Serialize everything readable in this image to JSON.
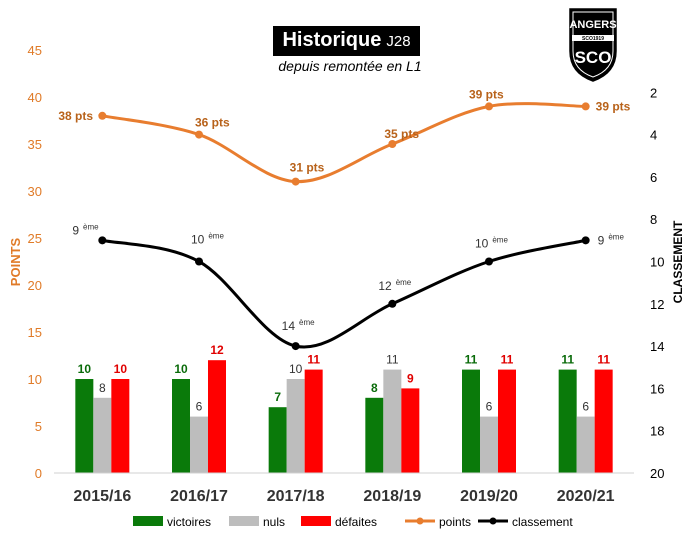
{
  "title": {
    "main": "Historique",
    "matchday": "J28"
  },
  "subtitle": "depuis remontée en L1",
  "logo": {
    "text": "ANGERS",
    "monogram": "SCO",
    "ribbon": "SCO1919"
  },
  "chart_data": {
    "type": "bar",
    "categories": [
      "2015/16",
      "2016/17",
      "2017/18",
      "2018/19",
      "2019/20",
      "2020/21"
    ],
    "series": [
      {
        "name": "victoires",
        "kind": "bar",
        "axis": "left",
        "color": "#0a7a0a",
        "label_color": "#0a6b0a",
        "values": [
          10,
          10,
          7,
          8,
          11,
          11
        ],
        "labels": [
          "10",
          "10",
          "7",
          "8",
          "11",
          "11"
        ]
      },
      {
        "name": "nuls",
        "kind": "bar",
        "axis": "left",
        "color": "#bdbdbd",
        "label_color": "#333333",
        "values": [
          8,
          6,
          10,
          11,
          6,
          6
        ],
        "labels": [
          "8",
          "6",
          "10",
          "11",
          "6",
          "6"
        ]
      },
      {
        "name": "défaites",
        "kind": "bar",
        "axis": "left",
        "color": "#ff0000",
        "label_color": "#e00000",
        "values": [
          10,
          12,
          11,
          9,
          11,
          11
        ],
        "labels": [
          "10",
          "12",
          "11",
          "9",
          "11",
          "11"
        ]
      },
      {
        "name": "points",
        "kind": "line",
        "axis": "left",
        "color": "#e87d2f",
        "label_color": "#b8621a",
        "values": [
          38,
          36,
          31,
          35,
          39,
          39
        ],
        "labels": [
          "38 pts",
          "36 pts",
          "31 pts",
          "35 pts",
          "39 pts",
          "39 pts"
        ]
      },
      {
        "name": "classement",
        "kind": "line",
        "axis": "right",
        "color": "#000000",
        "label_color": "#333333",
        "values": [
          9,
          10,
          14,
          12,
          10,
          9
        ],
        "labels": [
          "9",
          "10",
          "14",
          "12",
          "10",
          "9"
        ],
        "label_suffix": "ème"
      }
    ],
    "ylabel_left": "POINTS",
    "ylabel_right": "CLASSEMENT",
    "ylim_left": [
      0,
      45
    ],
    "yticks_left": [
      0,
      5,
      10,
      15,
      20,
      25,
      30,
      35,
      40,
      45
    ],
    "ylim_right": [
      20,
      0
    ],
    "yticks_right": [
      2,
      4,
      6,
      8,
      10,
      12,
      14,
      16,
      18,
      20
    ],
    "grid": false,
    "legend_position": "bottom",
    "left_axis_color": "#e07b28",
    "right_axis_color": "#000000"
  }
}
